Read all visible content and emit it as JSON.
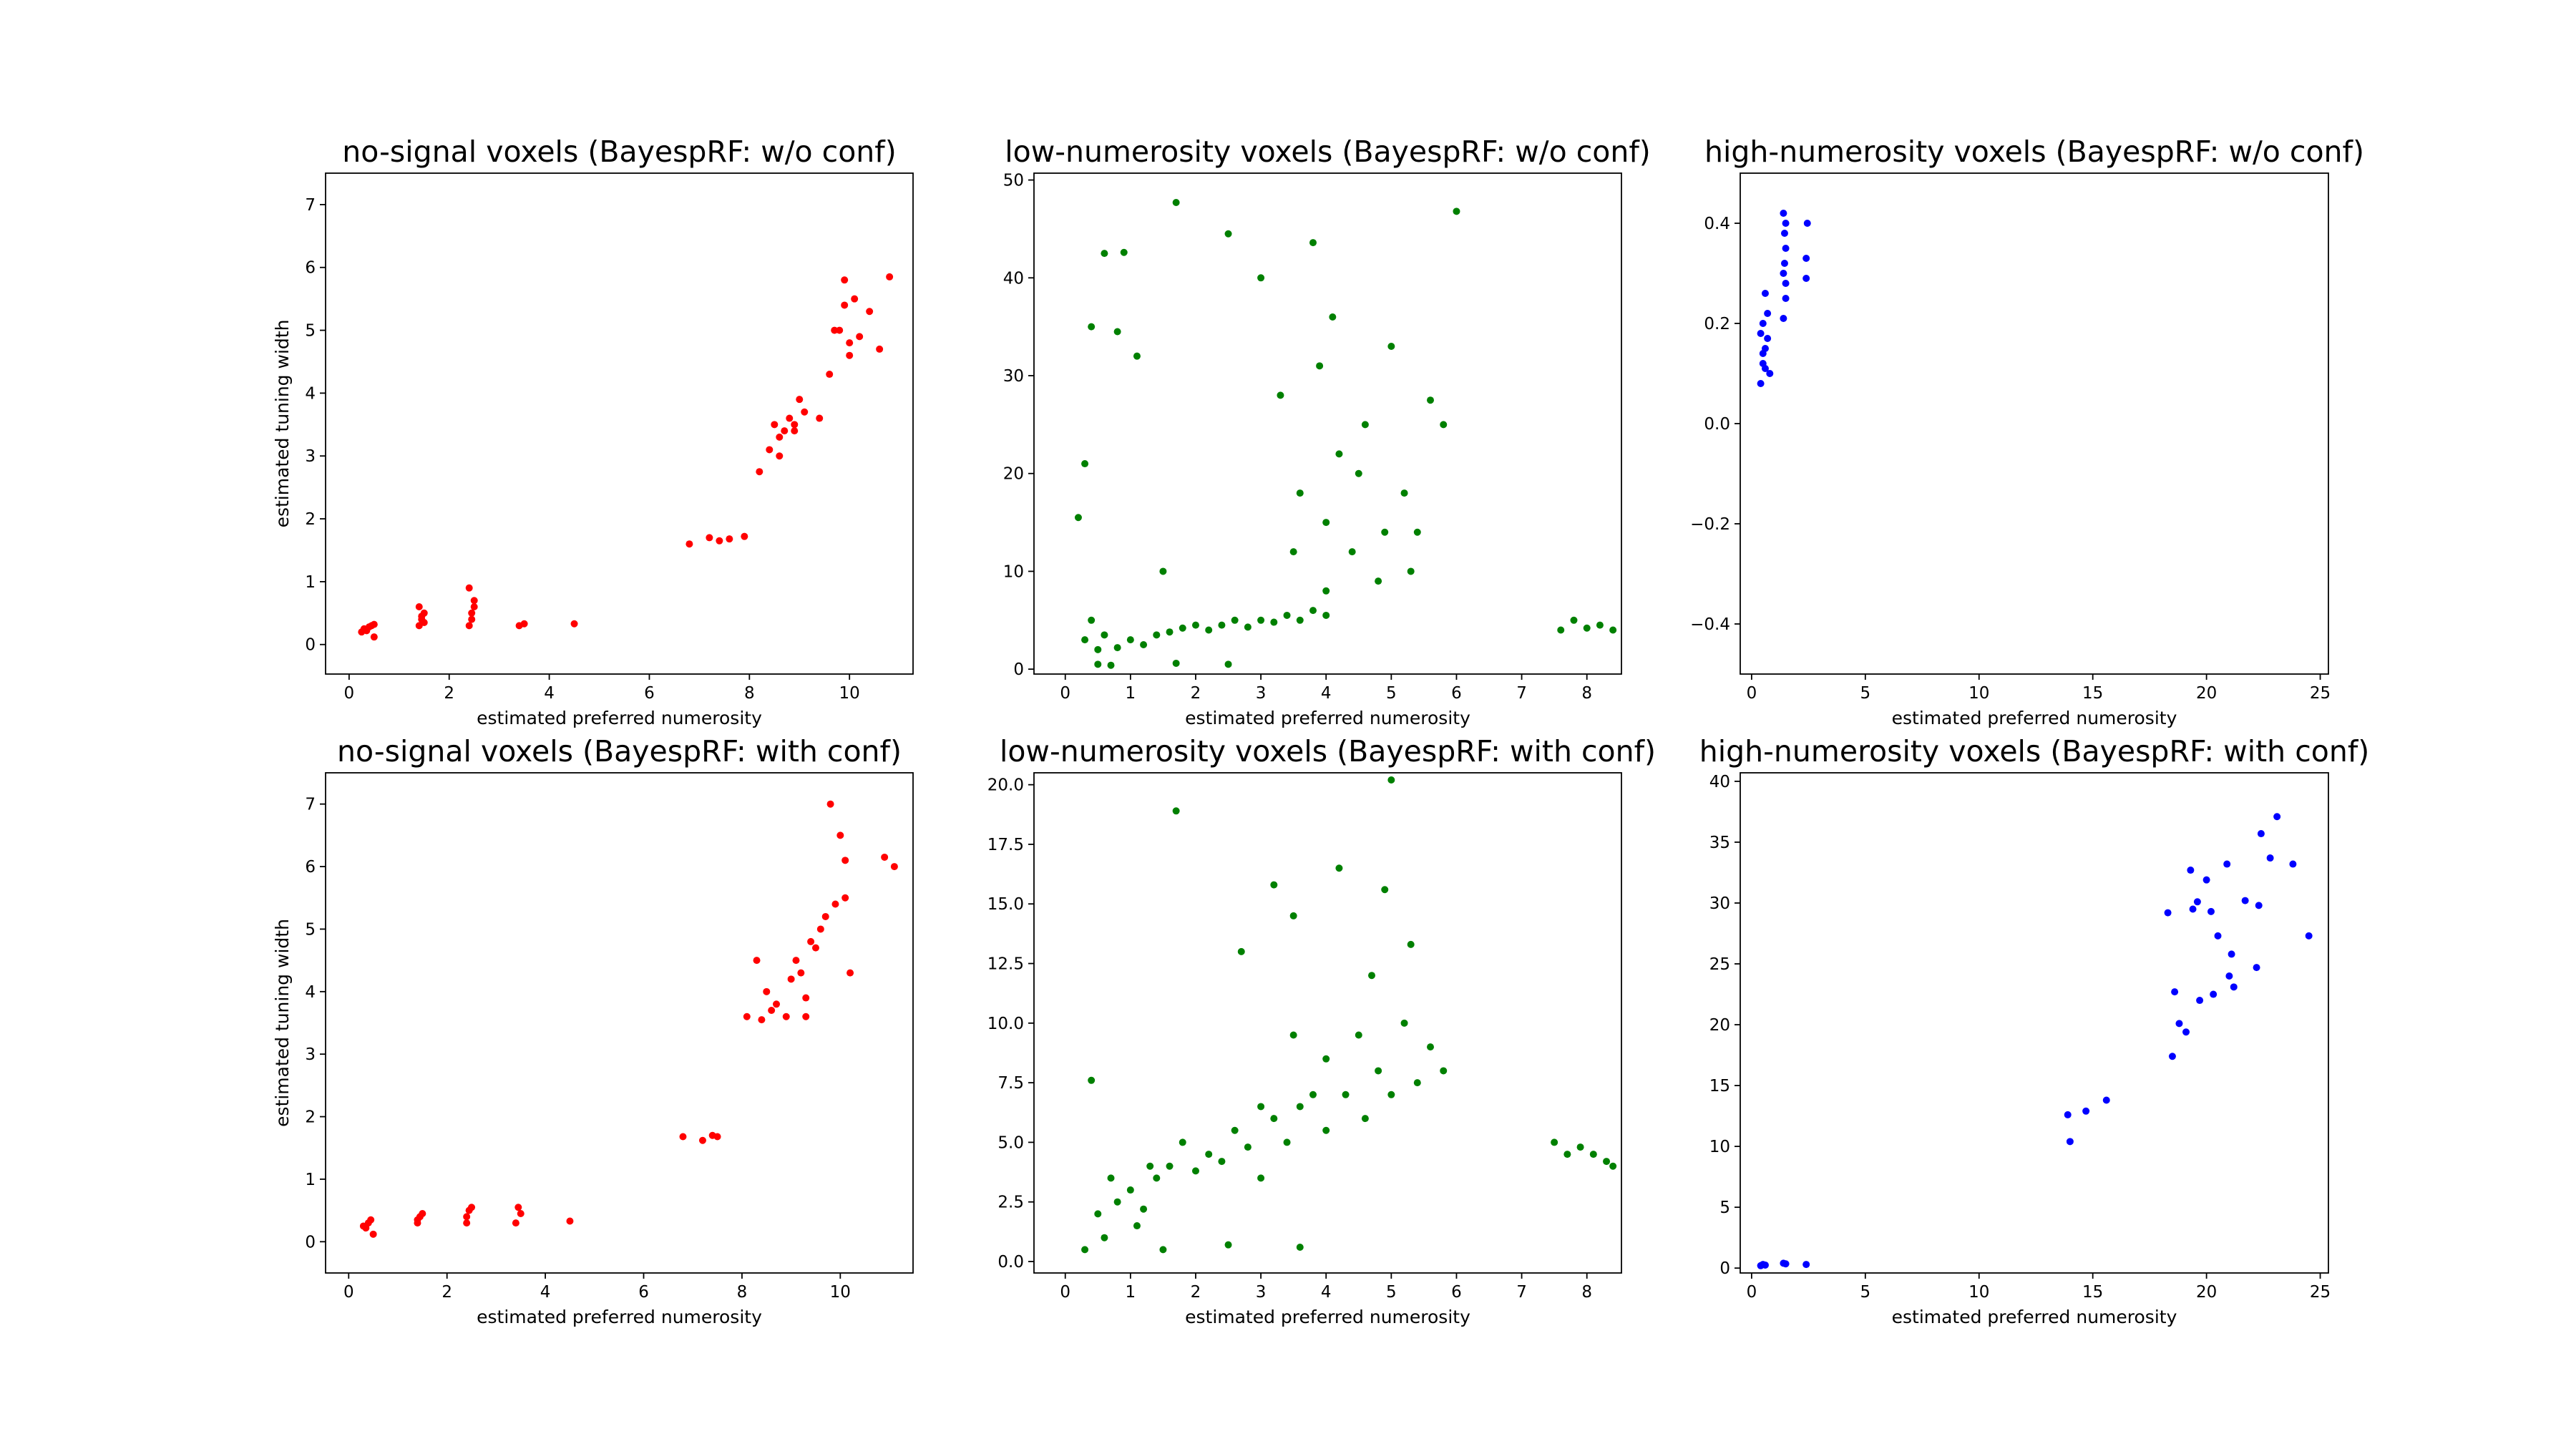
{
  "chart_data": [
    {
      "type": "scatter",
      "title": "no-signal voxels (BayespRF: w/o conf)",
      "xlabel": "estimated preferred numerosity",
      "ylabel": "estimated tuning width",
      "color": "#ff0000",
      "x": [
        0.3,
        0.4,
        0.45,
        0.5,
        0.35,
        0.25,
        0.5,
        1.4,
        1.45,
        1.5,
        1.4,
        1.5,
        1.45,
        2.4,
        2.45,
        2.5,
        2.4,
        2.45,
        2.5,
        3.4,
        3.5,
        4.5,
        6.8,
        7.2,
        7.4,
        7.6,
        7.9,
        8.2,
        8.4,
        8.5,
        8.6,
        8.7,
        8.8,
        8.9,
        9.0,
        9.1,
        8.6,
        8.9,
        9.4,
        9.6,
        9.8,
        9.9,
        10.0,
        10.1,
        10.2,
        10.4,
        10.6,
        10.8,
        9.7,
        9.9,
        10.0
      ],
      "values": [
        0.25,
        0.28,
        0.3,
        0.12,
        0.22,
        0.2,
        0.32,
        0.3,
        0.4,
        0.5,
        0.6,
        0.35,
        0.45,
        0.3,
        0.5,
        0.7,
        0.9,
        0.4,
        0.6,
        0.3,
        0.33,
        0.33,
        1.6,
        1.7,
        1.65,
        1.68,
        1.72,
        2.75,
        3.1,
        3.5,
        3.3,
        3.4,
        3.6,
        3.5,
        3.9,
        3.7,
        3.0,
        3.4,
        3.6,
        4.3,
        5.0,
        5.4,
        4.8,
        5.5,
        4.9,
        5.3,
        4.7,
        5.85,
        5.0,
        5.8,
        4.6
      ],
      "xlim": [
        -0.47,
        11.27
      ],
      "ylim": [
        -0.47,
        7.5
      ],
      "xticks": [
        0,
        2,
        4,
        6,
        8,
        10
      ],
      "yticks": [
        0,
        1,
        2,
        3,
        4,
        5,
        6,
        7
      ]
    },
    {
      "type": "scatter",
      "title": "low-numerosity voxels (BayespRF: w/o conf)",
      "xlabel": "estimated preferred numerosity",
      "color": "#008000",
      "x": [
        0.2,
        0.3,
        0.4,
        0.5,
        0.6,
        0.8,
        1.0,
        1.2,
        1.4,
        1.6,
        1.8,
        2.0,
        2.2,
        2.4,
        2.6,
        2.8,
        3.0,
        3.2,
        3.4,
        3.6,
        3.8,
        4.0,
        0.3,
        0.6,
        0.9,
        1.5,
        1.7,
        2.5,
        3.3,
        3.6,
        3.8,
        4.0,
        4.2,
        4.4,
        4.6,
        4.8,
        5.0,
        5.2,
        5.4,
        5.6,
        3.5,
        4.1,
        4.5,
        4.9,
        5.3,
        0.5,
        0.7,
        0.8,
        1.7,
        2.5,
        3.0,
        3.9,
        4.0,
        5.8,
        6.0,
        7.6,
        7.8,
        8.0,
        8.2,
        8.4,
        0.4,
        1.1
      ],
      "values": [
        15.5,
        3,
        5,
        2,
        3.5,
        2.2,
        3,
        2.5,
        3.5,
        3.8,
        4.2,
        4.5,
        4,
        4.5,
        5,
        4.3,
        5,
        4.8,
        5.5,
        5,
        6,
        5.5,
        21,
        42.5,
        42.6,
        10,
        47.7,
        44.5,
        28,
        18,
        43.6,
        15,
        22,
        12,
        25,
        9,
        33,
        18,
        14,
        27.5,
        12,
        36,
        20,
        14,
        10,
        0.5,
        0.4,
        34.5,
        0.6,
        0.5,
        40,
        31,
        8,
        25,
        46.8,
        4,
        5,
        4.2,
        4.5,
        4,
        35,
        32
      ],
      "xlim": [
        -0.48,
        8.53
      ],
      "ylim": [
        -0.5,
        50.7
      ],
      "xticks": [
        0,
        1,
        2,
        3,
        4,
        5,
        6,
        7,
        8
      ],
      "yticks": [
        0,
        10,
        20,
        30,
        40,
        50
      ]
    },
    {
      "type": "scatter",
      "title": "high-numerosity voxels (BayespRF: w/o conf)",
      "xlabel": "estimated preferred numerosity",
      "color": "#0000ff",
      "x": [
        0.4,
        0.5,
        0.6,
        0.5,
        0.7,
        0.4,
        0.6,
        0.8,
        0.5,
        0.7,
        1.4,
        1.5,
        1.4,
        1.5,
        1.45,
        1.4,
        1.5,
        1.45,
        2.4,
        2.4,
        2.45,
        0.6,
        1.5
      ],
      "values": [
        0.08,
        0.12,
        0.15,
        0.2,
        0.22,
        0.18,
        0.26,
        0.1,
        0.14,
        0.17,
        0.21,
        0.25,
        0.3,
        0.35,
        0.38,
        0.42,
        0.28,
        0.32,
        0.29,
        0.33,
        0.4,
        0.11,
        0.4
      ],
      "xlim": [
        -0.5,
        25.36
      ],
      "ylim": [
        -0.5,
        0.5
      ],
      "xticks": [
        0,
        5,
        10,
        15,
        20,
        25
      ],
      "yticks": [
        {
          "value": -0.4,
          "label": "−0.4"
        },
        {
          "value": -0.2,
          "label": "−0.2"
        },
        {
          "value": 0,
          "label": "0.0"
        },
        0.2,
        0.4
      ]
    },
    {
      "type": "scatter",
      "title": "no-signal voxels (BayespRF: with conf)",
      "xlabel": "estimated preferred numerosity",
      "ylabel": "estimated tuning width",
      "color": "#ff0000",
      "x": [
        0.3,
        0.4,
        0.5,
        0.45,
        0.35,
        1.4,
        1.45,
        1.5,
        1.4,
        2.4,
        2.45,
        2.5,
        2.4,
        3.4,
        3.5,
        3.45,
        4.5,
        6.8,
        7.2,
        7.4,
        7.5,
        8.1,
        8.3,
        8.4,
        8.5,
        8.6,
        8.7,
        8.9,
        9.0,
        9.1,
        9.2,
        9.3,
        9.4,
        9.5,
        9.6,
        9.7,
        9.8,
        9.9,
        10.0,
        10.1,
        10.2,
        10.1,
        10.9,
        11.1,
        9.3
      ],
      "values": [
        0.25,
        0.3,
        0.12,
        0.35,
        0.22,
        0.3,
        0.4,
        0.45,
        0.35,
        0.3,
        0.5,
        0.55,
        0.4,
        0.3,
        0.45,
        0.55,
        0.33,
        1.68,
        1.62,
        1.7,
        1.68,
        3.6,
        4.5,
        3.55,
        4.0,
        3.7,
        3.8,
        3.6,
        4.2,
        4.5,
        4.3,
        3.9,
        4.8,
        4.7,
        5.0,
        5.2,
        7.0,
        5.4,
        6.5,
        6.1,
        4.3,
        5.5,
        6.15,
        6.0,
        3.6
      ],
      "xlim": [
        -0.47,
        11.48
      ],
      "ylim": [
        -0.5,
        7.5
      ],
      "xticks": [
        0,
        2,
        4,
        6,
        8,
        10
      ],
      "yticks": [
        0,
        1,
        2,
        3,
        4,
        5,
        6,
        7
      ]
    },
    {
      "type": "scatter",
      "title": "low-numerosity voxels (BayespRF: with conf)",
      "xlabel": "estimated preferred numerosity",
      "color": "#008000",
      "x": [
        0.3,
        0.4,
        0.5,
        0.6,
        0.8,
        1.0,
        1.2,
        1.3,
        1.4,
        1.5,
        1.6,
        1.7,
        1.8,
        2.0,
        2.2,
        2.4,
        2.5,
        2.6,
        2.8,
        3.0,
        3.0,
        3.2,
        3.2,
        3.4,
        3.5,
        3.6,
        3.6,
        3.8,
        4.0,
        4.0,
        4.2,
        4.3,
        4.5,
        4.6,
        4.8,
        4.9,
        5.0,
        5.0,
        5.2,
        5.4,
        5.6,
        5.8,
        7.5,
        7.7,
        7.9,
        8.1,
        8.3,
        8.4,
        2.7,
        3.5,
        4.7,
        5.3,
        0.7,
        1.1
      ],
      "values": [
        0.5,
        7.6,
        2,
        1,
        2.5,
        3,
        2.2,
        4.0,
        3.5,
        0.5,
        4,
        18.9,
        5,
        3.8,
        4.5,
        4.2,
        0.7,
        5.5,
        4.8,
        6.5,
        3.5,
        6,
        15.8,
        5,
        9.5,
        6.5,
        0.6,
        7,
        5.5,
        8.5,
        16.5,
        7,
        9.5,
        6,
        8,
        15.6,
        20.2,
        7,
        10,
        7.5,
        9,
        8,
        5,
        4.5,
        4.8,
        4.5,
        4.2,
        4,
        13,
        14.5,
        12,
        13.3,
        3.5,
        1.5
      ],
      "xlim": [
        -0.48,
        8.53
      ],
      "ylim": [
        -0.48,
        20.5
      ],
      "xticks": [
        0,
        1,
        2,
        3,
        4,
        5,
        6,
        7,
        8
      ],
      "yticks": [
        {
          "value": 0,
          "label": "0.0"
        },
        2.5,
        {
          "value": 5,
          "label": "5.0"
        },
        7.5,
        {
          "value": 10,
          "label": "10.0"
        },
        12.5,
        {
          "value": 15,
          "label": "15.0"
        },
        17.5,
        {
          "value": 20,
          "label": "20.0"
        }
      ]
    },
    {
      "type": "scatter",
      "title": "high-numerosity voxels (BayespRF: with conf)",
      "xlabel": "estimated preferred numerosity",
      "color": "#0000ff",
      "x": [
        0.4,
        0.5,
        0.6,
        1.4,
        1.5,
        2.4,
        13.9,
        14.0,
        14.7,
        15.6,
        18.3,
        18.5,
        18.6,
        18.8,
        19.1,
        19.3,
        19.4,
        19.6,
        19.7,
        20.0,
        20.2,
        20.3,
        20.5,
        20.9,
        21.0,
        21.1,
        21.2,
        21.7,
        22.2,
        22.3,
        22.4,
        22.8,
        23.1,
        23.8,
        24.5
      ],
      "values": [
        0.2,
        0.3,
        0.25,
        0.4,
        0.35,
        0.3,
        12.6,
        10.4,
        12.9,
        13.8,
        29.2,
        17.4,
        22.7,
        20.1,
        19.4,
        32.7,
        29.5,
        30.1,
        22,
        31.9,
        29.3,
        22.5,
        27.3,
        33.2,
        24,
        25.8,
        23.1,
        30.2,
        24.7,
        29.8,
        35.7,
        33.7,
        37.1,
        33.2,
        27.3
      ],
      "xlim": [
        -0.5,
        25.36
      ],
      "ylim": [
        -0.4,
        40.7
      ],
      "xticks": [
        0,
        5,
        10,
        15,
        20,
        25
      ],
      "yticks": [
        0,
        5,
        10,
        15,
        20,
        25,
        30,
        35,
        40
      ]
    }
  ]
}
